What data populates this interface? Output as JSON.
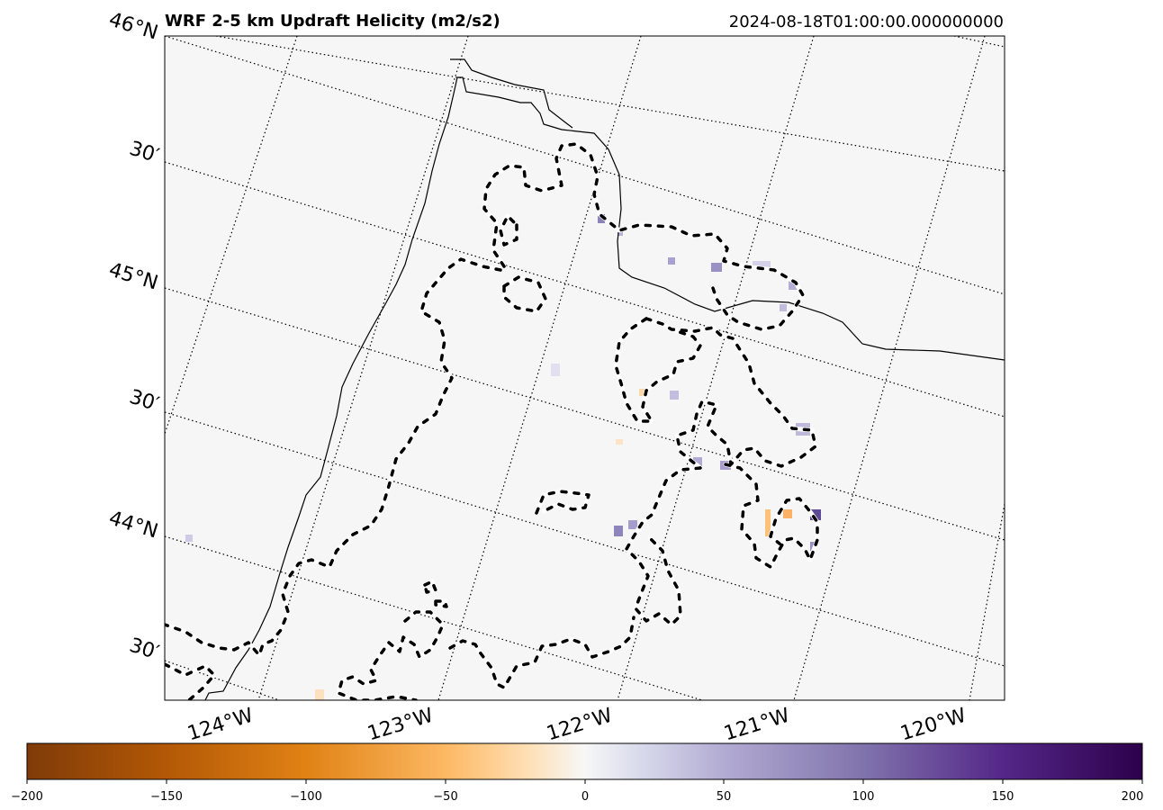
{
  "header": {
    "title": "WRF 2-5 km Updraft Helicity (m2/s2)",
    "valid_time": "2024-08-18T01:00:00.000000000"
  },
  "map": {
    "lat_labels": [
      "46°N",
      "30′",
      "45°N",
      "30′",
      "44°N",
      "30′"
    ],
    "lon_labels": [
      "124°W",
      "123°W",
      "122°W",
      "121°W",
      "120°W"
    ],
    "gridlines": "dotted",
    "colormap": "PuOr"
  },
  "colorbar": {
    "ticks": [
      "−200",
      "−150",
      "−100",
      "−50",
      "0",
      "50",
      "100",
      "150",
      "200"
    ],
    "range": [
      -200,
      200
    ],
    "colors": [
      "#7f3b08",
      "#e08214",
      "#fdb863",
      "#fee0b6",
      "#f7f7f7",
      "#d8daeb",
      "#b2abd2",
      "#8073ac",
      "#2d004b"
    ]
  }
}
